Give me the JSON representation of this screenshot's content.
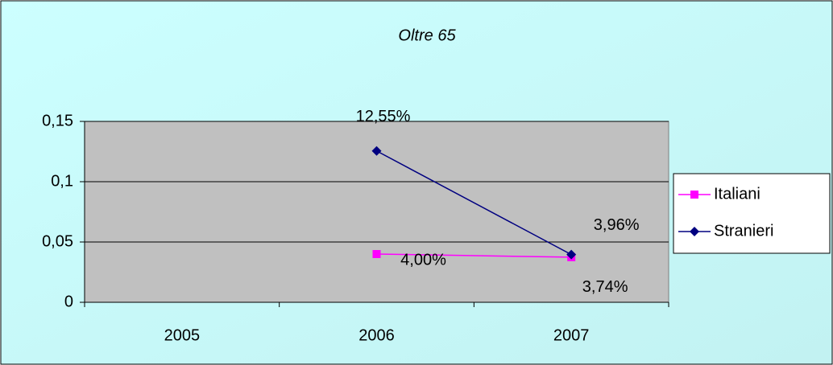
{
  "chart_data": {
    "type": "line",
    "title": "Oltre 65",
    "categories": [
      "2005",
      "2006",
      "2007"
    ],
    "series": [
      {
        "name": "Italiani",
        "color": "#ff00ff",
        "marker": "square",
        "values": [
          null,
          0.04,
          0.0374
        ],
        "value_labels": [
          null,
          "4,00%",
          "3,74%"
        ]
      },
      {
        "name": "Stranieri",
        "color": "#000080",
        "marker": "diamond",
        "values": [
          null,
          0.1255,
          0.0396
        ],
        "value_labels": [
          null,
          "12,55%",
          "3,96%"
        ]
      }
    ],
    "ylim": [
      0,
      0.15
    ],
    "yticks": [
      0,
      {
        "value": 0.05,
        "label": "0,05"
      },
      {
        "value": 0.1,
        "label": "0,1"
      },
      {
        "value": 0.15,
        "label": "0,15"
      }
    ],
    "grid": true,
    "legend": "right",
    "plot_background": "#c0c0c0"
  }
}
